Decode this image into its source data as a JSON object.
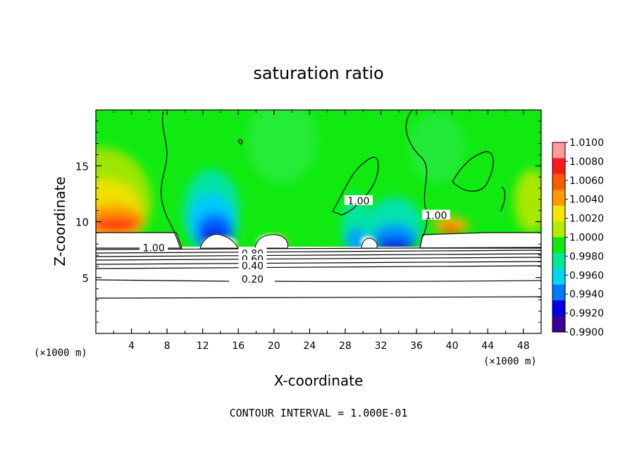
{
  "chart_data": {
    "type": "heatmap",
    "title": "saturation ratio",
    "xlabel": "X-coordinate",
    "ylabel": "Z-coordinate",
    "x_unit": "(×1000 m)",
    "x_unit_right": "(×1000 m)",
    "footer": "CONTOUR INTERVAL = 1.000E-01",
    "xlim": [
      0,
      50
    ],
    "ylim": [
      0,
      20
    ],
    "x_ticks": [
      "4",
      "8",
      "12",
      "16",
      "20",
      "24",
      "28",
      "32",
      "36",
      "40",
      "44",
      "48"
    ],
    "y_ticks": [
      "5",
      "10",
      "15"
    ],
    "colorbar": {
      "range": [
        0.99,
        1.01
      ],
      "labels": [
        "1.0100",
        "1.0080",
        "1.0060",
        "1.0040",
        "1.0020",
        "1.0000",
        "0.9980",
        "0.9960",
        "0.9940",
        "0.9920",
        "0.9900"
      ],
      "colors": [
        "#ff9a9a",
        "#ff1a1a",
        "#ff5a00",
        "#ff9a00",
        "#f2e600",
        "#b4ec00",
        "#10e810",
        "#00e89a",
        "#00d8f0",
        "#0078ff",
        "#0000e6",
        "#3a0099"
      ]
    },
    "contour_labels": [
      {
        "text": "1.00",
        "x": 6.5,
        "y": 7.6
      },
      {
        "text": "0.80",
        "x": 17.6,
        "y": 7.1
      },
      {
        "text": "0.60",
        "x": 17.6,
        "y": 6.6
      },
      {
        "text": "0.40",
        "x": 17.6,
        "y": 6.0
      },
      {
        "text": "0.20",
        "x": 17.6,
        "y": 4.8
      },
      {
        "text": "1.00",
        "x": 29.5,
        "y": 11.8
      },
      {
        "text": "1.00",
        "x": 38.2,
        "y": 10.5
      }
    ],
    "contour_levels": [
      0.2,
      0.4,
      0.6,
      0.8,
      1.0
    ]
  }
}
